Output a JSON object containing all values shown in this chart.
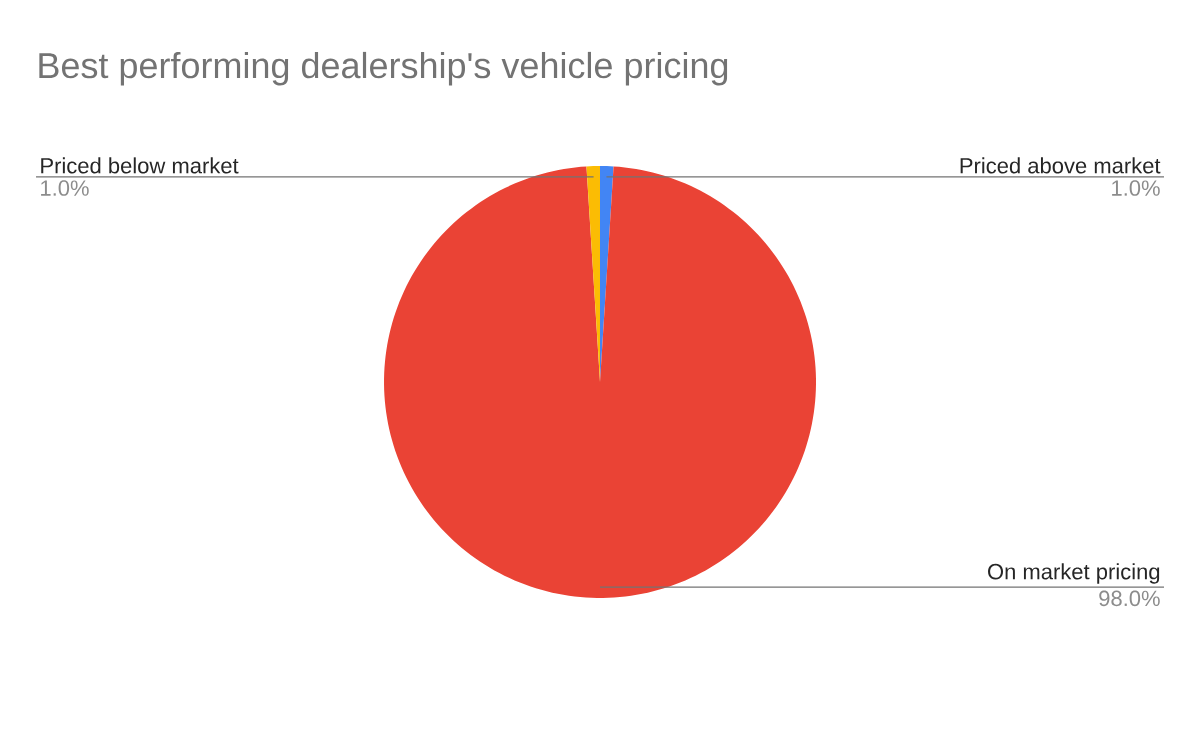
{
  "chart_data": {
    "type": "pie",
    "title": "Best performing dealership's vehicle pricing",
    "categories": [
      "Priced above market",
      "On market pricing",
      "Priced below market"
    ],
    "values": [
      1.0,
      98.0,
      1.0
    ],
    "colors": [
      "#4285f4",
      "#ea4335",
      "#fbbc04"
    ],
    "value_labels": [
      "1.0%",
      "98.0%",
      "1.0%"
    ]
  }
}
